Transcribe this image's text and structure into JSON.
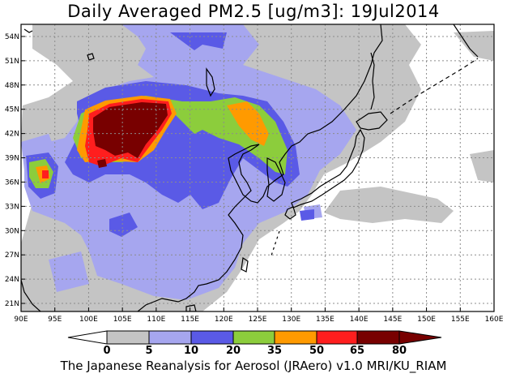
{
  "map": {
    "title": "Daily Averaged PM2.5 [ug/m3]: 19Jul2014",
    "footer": "The Japanese Reanalysis for Aerosol (JRAero) v1.0 MRI/KU_RIAM",
    "lon_labels": [
      "90E",
      "95E",
      "100E",
      "105E",
      "110E",
      "115E",
      "120E",
      "125E",
      "130E",
      "135E",
      "140E",
      "145E",
      "150E",
      "155E",
      "160E"
    ],
    "lat_labels": [
      "21N",
      "24N",
      "27N",
      "30N",
      "33N",
      "36N",
      "39N",
      "42N",
      "45N",
      "48N",
      "51N",
      "54N"
    ],
    "lon_range": [
      90,
      160
    ],
    "lat_range": [
      20,
      55.5
    ],
    "gridlines": true
  },
  "legend": {
    "levels": [
      "0",
      "5",
      "10",
      "20",
      "35",
      "50",
      "65",
      "80"
    ],
    "colors": [
      "#ffffff",
      "#c4c4c4",
      "#a6a6ef",
      "#5a5ae6",
      "#8ccd3c",
      "#ff9a00",
      "#ff1e1e",
      "#780000"
    ]
  },
  "colors": {
    "gray": "#c4c4c4",
    "light_blue": "#a6a6ef",
    "blue": "#5a5ae6",
    "green": "#8ccd3c",
    "orange": "#ff9a00",
    "red": "#ff1e1e",
    "dark_red": "#780000",
    "coast": "#000000",
    "grid": "#8c8c8c"
  }
}
